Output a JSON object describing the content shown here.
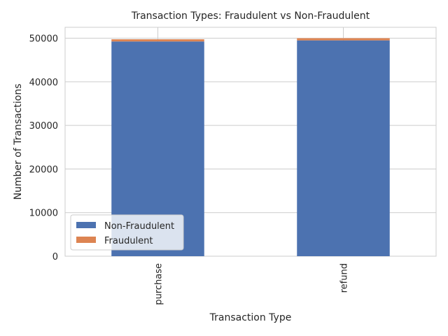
{
  "chart_data": {
    "type": "bar",
    "stacked": true,
    "title": "Transaction Types: Fraudulent vs Non-Fraudulent",
    "xlabel": "Transaction Type",
    "ylabel": "Number of Transactions",
    "categories": [
      "purchase",
      "refund"
    ],
    "series": [
      {
        "name": "Non-Fraudulent",
        "values": [
          49250,
          49500
        ],
        "color": "#4c72b0"
      },
      {
        "name": "Fraudulent",
        "values": [
          500,
          500
        ],
        "color": "#dd8452"
      }
    ],
    "ylim": [
      0,
      52500
    ],
    "yticks": [
      0,
      10000,
      20000,
      30000,
      40000,
      50000
    ],
    "grid": true,
    "legend_position": "lower-left"
  }
}
